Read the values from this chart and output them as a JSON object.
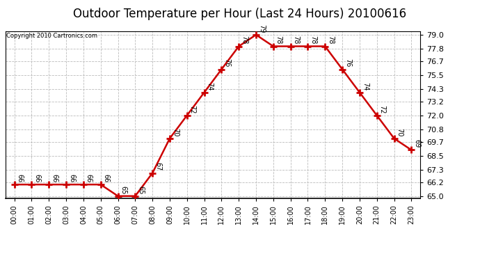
{
  "title": "Outdoor Temperature per Hour (Last 24 Hours) 20100616",
  "copyright": "Copyright 2010 Cartronics.com",
  "hours": [
    0,
    1,
    2,
    3,
    4,
    5,
    6,
    7,
    8,
    9,
    10,
    11,
    12,
    13,
    14,
    15,
    16,
    17,
    18,
    19,
    20,
    21,
    22,
    23
  ],
  "temps": [
    66,
    66,
    66,
    66,
    66,
    66,
    65,
    65,
    67,
    70,
    72,
    74,
    76,
    78,
    79,
    78,
    78,
    78,
    78,
    76,
    74,
    72,
    70,
    69
  ],
  "hour_labels": [
    "00:00",
    "01:00",
    "02:00",
    "03:00",
    "04:00",
    "05:00",
    "06:00",
    "07:00",
    "08:00",
    "09:00",
    "10:00",
    "11:00",
    "12:00",
    "13:00",
    "14:00",
    "15:00",
    "16:00",
    "17:00",
    "18:00",
    "19:00",
    "20:00",
    "21:00",
    "22:00",
    "23:00"
  ],
  "yticks": [
    65.0,
    66.2,
    67.3,
    68.5,
    69.7,
    70.8,
    72.0,
    73.2,
    74.3,
    75.5,
    76.7,
    77.8,
    79.0
  ],
  "ylim": [
    64.8,
    79.3
  ],
  "line_color": "#cc0000",
  "marker_color": "#cc0000",
  "bg_color": "#ffffff",
  "grid_color": "#bbbbbb",
  "title_fontsize": 12,
  "annotation_fontsize": 7,
  "tick_fontsize": 7,
  "ytick_fontsize": 8
}
